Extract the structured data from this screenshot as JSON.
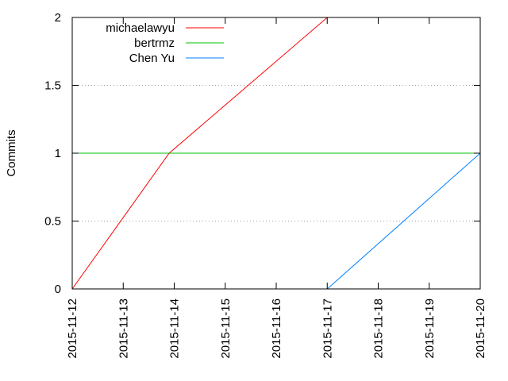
{
  "chart_data": {
    "type": "line",
    "title": "",
    "xlabel": "",
    "ylabel": "Commits",
    "x_type": "date",
    "xlim": [
      "2015-11-12",
      "2015-11-20"
    ],
    "ylim": [
      0,
      2
    ],
    "x_ticks": [
      "2015-11-12",
      "2015-11-13",
      "2015-11-14",
      "2015-11-15",
      "2015-11-16",
      "2015-11-17",
      "2015-11-18",
      "2015-11-19",
      "2015-11-20"
    ],
    "y_ticks": [
      {
        "value": 0,
        "label": "0"
      },
      {
        "value": 0.5,
        "label": "0.5"
      },
      {
        "value": 1,
        "label": "1"
      },
      {
        "value": 1.5,
        "label": "1.5"
      },
      {
        "value": 2,
        "label": "2"
      }
    ],
    "grid": "horizontal-dotted",
    "legend_position": "top-left",
    "series": [
      {
        "name": "michaelawyu",
        "color": "#ff0000",
        "x": [
          "2015-11-12T00:00",
          "2015-11-13T21:36",
          "2015-11-17T00:00"
        ],
        "y": [
          0,
          1,
          2
        ]
      },
      {
        "name": "bertrmz",
        "color": "#00c000",
        "x": [
          "2015-11-12T00:00",
          "2015-11-20T00:00"
        ],
        "y": [
          1,
          1
        ]
      },
      {
        "name": "Chen Yu",
        "color": "#0080ff",
        "x": [
          "2015-11-17T00:00",
          "2015-11-20T00:00"
        ],
        "y": [
          0,
          1
        ]
      }
    ]
  }
}
